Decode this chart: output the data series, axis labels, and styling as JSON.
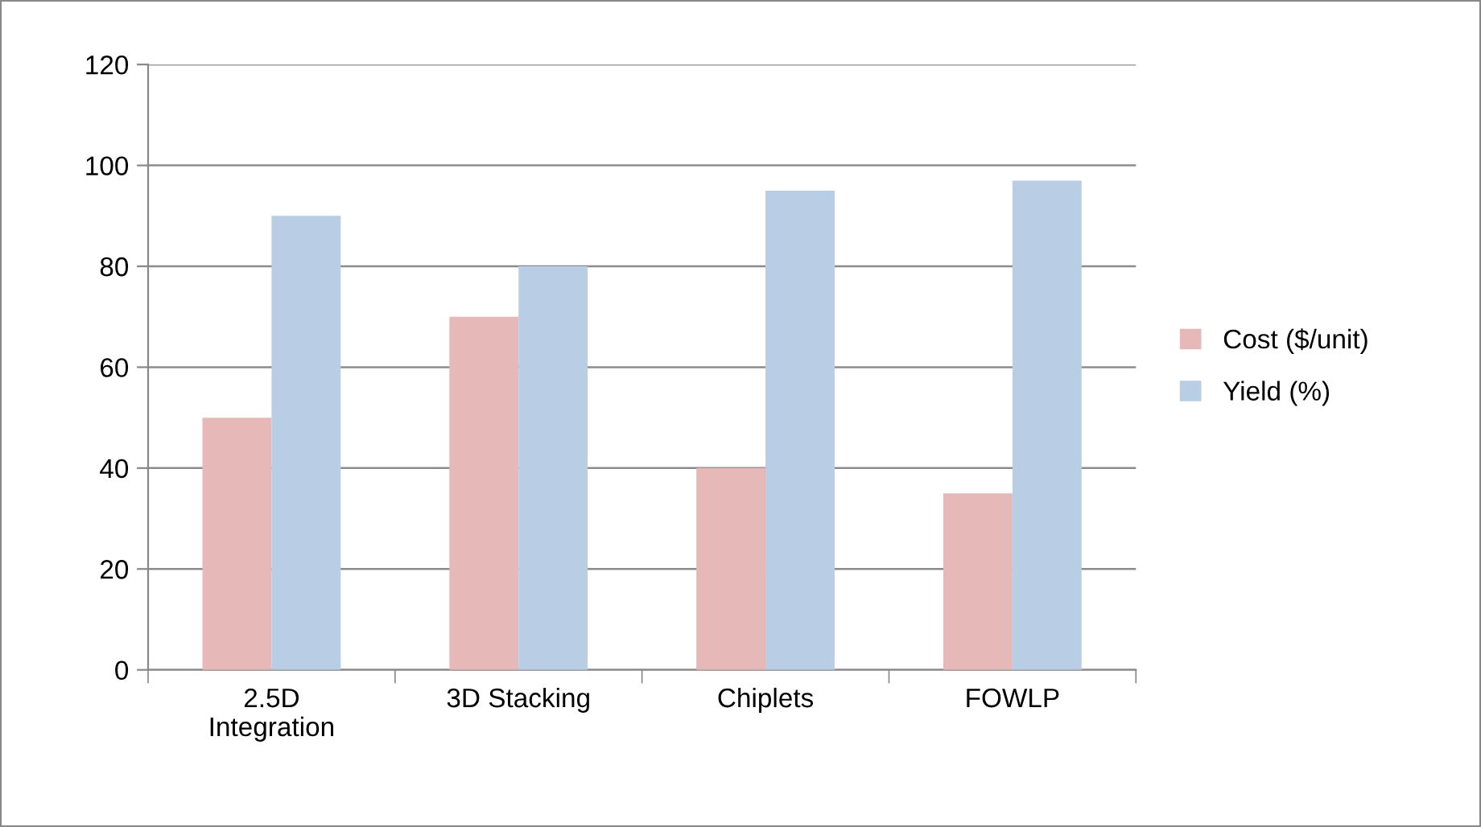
{
  "chart_data": {
    "type": "bar",
    "categories": [
      "2.5D Integration",
      "3D Stacking",
      "Chiplets",
      "FOWLP"
    ],
    "series": [
      {
        "name": "Cost ($/unit)",
        "color": "#e6b9b8",
        "values": [
          50,
          70,
          40,
          35
        ]
      },
      {
        "name": "Yield (%)",
        "color": "#b9cde5",
        "values": [
          90,
          80,
          95,
          97
        ]
      }
    ],
    "ylim": [
      0,
      120
    ],
    "yticks": [
      0,
      20,
      40,
      60,
      80,
      100,
      120
    ],
    "grid": "y",
    "legend": "right"
  }
}
